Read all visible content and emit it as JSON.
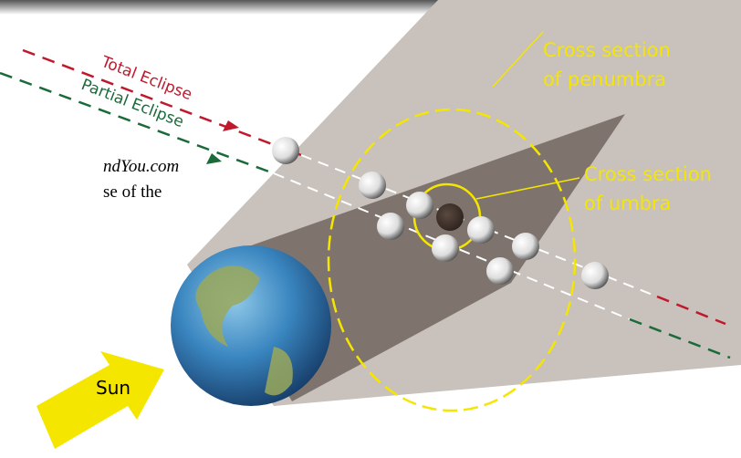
{
  "labels": {
    "total_eclipse": "Total Eclipse",
    "partial_eclipse": "Partial Eclipse",
    "penumbra": [
      "Cross section",
      "of penumbra"
    ],
    "umbra": [
      "Cross section",
      "of umbra"
    ],
    "sun": "Sun"
  },
  "side_text": [
    "ndYou.com",
    "se of the"
  ]
}
